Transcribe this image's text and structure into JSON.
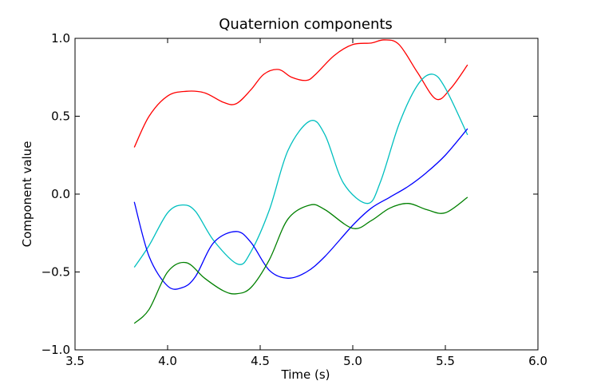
{
  "chart_data": {
    "type": "line",
    "title": "Quaternion components",
    "xlabel": "Time (s)",
    "ylabel": "Component value",
    "xlim": [
      3.5,
      6.0
    ],
    "ylim": [
      -1.0,
      1.0
    ],
    "xticks": [
      3.5,
      4.0,
      4.5,
      5.0,
      5.5,
      6.0
    ],
    "xtick_labels": [
      "3.5",
      "4.0",
      "4.5",
      "5.0",
      "5.5",
      "6.0"
    ],
    "yticks": [
      -1.0,
      -0.5,
      0.0,
      0.5,
      1.0
    ],
    "ytick_labels": [
      "−1.0",
      "−0.5",
      "0.0",
      "0.5",
      "1.0"
    ],
    "grid": false,
    "legend": "none",
    "series": [
      {
        "color": "#ff0000",
        "x": [
          3.82,
          3.9,
          4.0,
          4.1,
          4.2,
          4.3,
          4.37,
          4.45,
          4.52,
          4.6,
          4.67,
          4.75,
          4.8,
          4.9,
          5.0,
          5.1,
          5.17,
          5.25,
          5.35,
          5.45,
          5.53,
          5.62
        ],
        "y": [
          0.3,
          0.5,
          0.63,
          0.66,
          0.65,
          0.59,
          0.58,
          0.67,
          0.77,
          0.8,
          0.75,
          0.73,
          0.77,
          0.89,
          0.96,
          0.97,
          0.99,
          0.96,
          0.78,
          0.61,
          0.68,
          0.83
        ]
      },
      {
        "color": "#00bfbf",
        "x": [
          3.82,
          3.9,
          4.0,
          4.08,
          4.15,
          4.25,
          4.38,
          4.45,
          4.55,
          4.65,
          4.77,
          4.85,
          4.95,
          5.08,
          5.15,
          5.25,
          5.35,
          5.43,
          5.5,
          5.62
        ],
        "y": [
          -0.47,
          -0.33,
          -0.12,
          -0.07,
          -0.11,
          -0.3,
          -0.45,
          -0.37,
          -0.1,
          0.28,
          0.47,
          0.38,
          0.07,
          -0.06,
          0.08,
          0.45,
          0.7,
          0.77,
          0.68,
          0.38
        ]
      },
      {
        "color": "#0000ff",
        "x": [
          3.82,
          3.9,
          4.0,
          4.08,
          4.15,
          4.25,
          4.37,
          4.45,
          4.55,
          4.65,
          4.75,
          4.85,
          5.0,
          5.1,
          5.2,
          5.3,
          5.4,
          5.5,
          5.62
        ],
        "y": [
          -0.05,
          -0.4,
          -0.59,
          -0.6,
          -0.53,
          -0.31,
          -0.24,
          -0.31,
          -0.49,
          -0.54,
          -0.5,
          -0.4,
          -0.2,
          -0.09,
          -0.02,
          0.05,
          0.14,
          0.25,
          0.42
        ]
      },
      {
        "color": "#008000",
        "x": [
          3.82,
          3.9,
          4.0,
          4.1,
          4.2,
          4.3,
          4.37,
          4.45,
          4.55,
          4.65,
          4.77,
          4.85,
          5.0,
          5.1,
          5.2,
          5.3,
          5.4,
          5.5,
          5.62
        ],
        "y": [
          -0.83,
          -0.74,
          -0.5,
          -0.44,
          -0.54,
          -0.62,
          -0.64,
          -0.6,
          -0.42,
          -0.16,
          -0.07,
          -0.1,
          -0.22,
          -0.17,
          -0.09,
          -0.06,
          -0.1,
          -0.12,
          -0.02
        ]
      }
    ]
  }
}
